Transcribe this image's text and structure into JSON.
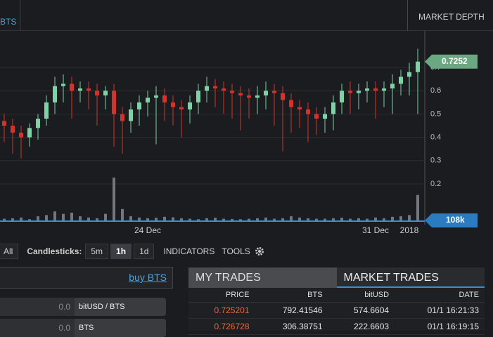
{
  "top_bar": {
    "market_tab": "BTS",
    "market_depth": "MARKET DEPTH"
  },
  "chart_data": {
    "type": "candlestick",
    "categories": [
      null,
      null,
      null,
      null,
      null,
      null,
      null,
      null,
      null,
      null,
      null,
      null,
      null,
      null,
      null,
      null,
      null,
      "24 Dec",
      null,
      null,
      null,
      null,
      null,
      null,
      null,
      null,
      null,
      null,
      null,
      null,
      null,
      null,
      null,
      null,
      null,
      null,
      null,
      null,
      null,
      null,
      null,
      null,
      null,
      null,
      "31 Dec",
      null,
      null,
      null,
      "2018",
      null
    ],
    "open": [
      0.47,
      0.45,
      0.42,
      0.4,
      0.44,
      0.48,
      0.55,
      0.62,
      0.63,
      0.6,
      0.61,
      0.6,
      0.58,
      0.6,
      0.5,
      0.47,
      0.52,
      0.55,
      0.57,
      0.58,
      0.55,
      0.53,
      0.52,
      0.55,
      0.6,
      0.62,
      0.61,
      0.6,
      0.59,
      0.58,
      0.57,
      0.58,
      0.6,
      0.59,
      0.56,
      0.53,
      0.52,
      0.5,
      0.48,
      0.5,
      0.55,
      0.6,
      0.59,
      0.6,
      0.61,
      0.6,
      0.61,
      0.63,
      0.66,
      0.68
    ],
    "high": [
      0.5,
      0.48,
      0.45,
      0.46,
      0.5,
      0.58,
      0.66,
      0.67,
      0.66,
      0.64,
      0.64,
      0.63,
      0.62,
      0.63,
      0.53,
      0.55,
      0.58,
      0.6,
      0.62,
      0.61,
      0.58,
      0.56,
      0.58,
      0.63,
      0.66,
      0.65,
      0.64,
      0.63,
      0.62,
      0.61,
      0.62,
      0.64,
      0.63,
      0.62,
      0.59,
      0.56,
      0.55,
      0.53,
      0.53,
      0.58,
      0.63,
      0.64,
      0.63,
      0.64,
      0.64,
      0.64,
      0.67,
      0.69,
      0.72,
      0.78
    ],
    "low": [
      0.38,
      0.33,
      0.31,
      0.36,
      0.39,
      0.45,
      0.5,
      0.55,
      0.48,
      0.55,
      0.52,
      0.45,
      0.52,
      0.36,
      0.33,
      0.42,
      0.45,
      0.49,
      0.37,
      0.47,
      0.45,
      0.4,
      0.46,
      0.5,
      0.55,
      0.53,
      0.5,
      0.48,
      0.43,
      0.48,
      0.5,
      0.52,
      0.45,
      0.34,
      0.42,
      0.44,
      0.38,
      0.41,
      0.42,
      0.43,
      0.5,
      0.5,
      0.52,
      0.55,
      0.48,
      0.53,
      0.5,
      0.58,
      0.58,
      0.5
    ],
    "close": [
      0.45,
      0.42,
      0.4,
      0.44,
      0.48,
      0.55,
      0.62,
      0.63,
      0.6,
      0.61,
      0.6,
      0.58,
      0.6,
      0.5,
      0.47,
      0.52,
      0.55,
      0.57,
      0.58,
      0.55,
      0.53,
      0.52,
      0.55,
      0.6,
      0.62,
      0.61,
      0.6,
      0.59,
      0.58,
      0.57,
      0.58,
      0.6,
      0.59,
      0.56,
      0.53,
      0.52,
      0.5,
      0.48,
      0.5,
      0.55,
      0.6,
      0.59,
      0.6,
      0.61,
      0.6,
      0.61,
      0.63,
      0.66,
      0.68,
      0.7252
    ],
    "volume": [
      10,
      12,
      15,
      8,
      20,
      25,
      40,
      30,
      35,
      20,
      15,
      12,
      30,
      180,
      50,
      20,
      15,
      12,
      14,
      18,
      16,
      12,
      10,
      8,
      12,
      14,
      10,
      9,
      8,
      10,
      12,
      15,
      10,
      12,
      20,
      15,
      12,
      10,
      10,
      12,
      14,
      10,
      12,
      10,
      15,
      12,
      18,
      20,
      25,
      108
    ],
    "vlim": [
      0,
      800
    ],
    "ylim": [
      0.025,
      0.857
    ],
    "yticks": [
      0.2,
      0.3,
      0.4,
      0.5,
      0.6,
      0.7
    ],
    "last_price": 0.7252,
    "volume_label": "108k",
    "up_color": "#7fd1a6",
    "down_color": "#d2342a",
    "volume_color": "#8a8d94",
    "grid": true
  },
  "toolbar": {
    "all": "All",
    "candlesticks": "Candlesticks:",
    "intervals": [
      "5m",
      "1h",
      "1d"
    ],
    "active_interval": 1,
    "indicators": "INDICATORS",
    "tools": "TOOLS"
  },
  "balance_panel": {
    "link": "buy BTS",
    "rows": [
      {
        "amount": "0.0",
        "asset": "bitUSD / BTS"
      },
      {
        "amount": "0.0",
        "asset": "BTS"
      }
    ]
  },
  "trades_panel": {
    "tabs": [
      "MY TRADES",
      "MARKET TRADES"
    ],
    "active_tab": 1,
    "columns": [
      "PRICE",
      "BTS",
      "bitUSD",
      "DATE"
    ],
    "rows": [
      [
        "0.725201",
        "792.41546",
        "574.6604",
        "01/1 16:21:33"
      ],
      [
        "0.726728",
        "306.38751",
        "222.6603",
        "01/1 16:19:15"
      ]
    ]
  }
}
